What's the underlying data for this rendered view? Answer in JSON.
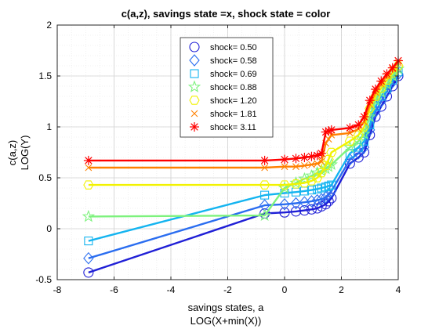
{
  "chart_data": {
    "type": "line",
    "title": "c(a,z), savings state =x, shock state = color",
    "xlabel": [
      "savings states, a",
      "LOG(X+min(X))"
    ],
    "ylabel": [
      "c(a,z)",
      "LOG(Y)"
    ],
    "xlim": [
      -8,
      4
    ],
    "ylim": [
      -0.5,
      2
    ],
    "xticks": [
      -8,
      -6,
      -4,
      -2,
      0,
      2,
      4
    ],
    "yticks": [
      -0.5,
      0,
      0.5,
      1,
      1.5,
      2
    ],
    "grid": true,
    "minor_grid": true,
    "legend_position": "top-center",
    "series": [
      {
        "name": "shock=  0.50",
        "color": "#1f1fd6",
        "marker": "circle",
        "x": [
          -6.9,
          -0.7,
          0.0,
          0.4,
          0.7,
          0.95,
          1.15,
          1.3,
          1.45,
          1.55,
          1.65,
          2.3,
          2.6,
          2.8,
          3.0,
          3.2,
          3.4,
          3.6,
          3.8,
          4.0
        ],
        "y": [
          -0.43,
          0.15,
          0.16,
          0.17,
          0.18,
          0.19,
          0.2,
          0.22,
          0.24,
          0.27,
          0.3,
          0.64,
          0.7,
          0.75,
          0.92,
          1.1,
          1.2,
          1.3,
          1.4,
          1.5
        ]
      },
      {
        "name": "shock=  0.58",
        "color": "#2a6df0",
        "marker": "diamond",
        "x": [
          -6.9,
          -0.7,
          0.0,
          0.4,
          0.7,
          0.95,
          1.15,
          1.3,
          1.45,
          1.55,
          1.65,
          2.3,
          2.6,
          2.8,
          3.0,
          3.2,
          3.4,
          3.6,
          3.8,
          4.0
        ],
        "y": [
          -0.29,
          0.23,
          0.24,
          0.25,
          0.26,
          0.27,
          0.28,
          0.29,
          0.31,
          0.34,
          0.37,
          0.68,
          0.74,
          0.8,
          0.97,
          1.15,
          1.25,
          1.35,
          1.44,
          1.52
        ]
      },
      {
        "name": "shock=  0.69",
        "color": "#14b4f0",
        "marker": "square",
        "x": [
          -6.9,
          -0.7,
          0.0,
          0.4,
          0.7,
          0.95,
          1.15,
          1.3,
          1.45,
          1.55,
          1.65,
          2.3,
          2.6,
          2.8,
          3.0,
          3.2,
          3.4,
          3.6,
          3.8,
          4.0
        ],
        "y": [
          -0.12,
          0.33,
          0.35,
          0.36,
          0.37,
          0.38,
          0.39,
          0.4,
          0.41,
          0.42,
          0.43,
          0.74,
          0.8,
          0.86,
          1.02,
          1.2,
          1.3,
          1.38,
          1.46,
          1.54
        ]
      },
      {
        "name": "shock=  0.88",
        "color": "#7df27d",
        "marker": "star5",
        "x": [
          -6.9,
          -0.7,
          0.0,
          0.4,
          0.7,
          0.95,
          1.15,
          1.3,
          1.45,
          1.55,
          1.65,
          2.3,
          2.6,
          2.8,
          3.0,
          3.2,
          3.4,
          3.6,
          3.8,
          4.0
        ],
        "y": [
          0.12,
          0.13,
          0.4,
          0.45,
          0.49,
          0.52,
          0.55,
          0.57,
          0.59,
          0.61,
          0.63,
          0.8,
          0.86,
          0.93,
          1.1,
          1.26,
          1.34,
          1.42,
          1.5,
          1.57
        ]
      },
      {
        "name": "shock=  1.20",
        "color": "#f2f200",
        "marker": "hexagon",
        "x": [
          -6.9,
          -0.7,
          0.0,
          0.4,
          0.7,
          0.95,
          1.15,
          1.3,
          1.45,
          1.55,
          1.65,
          2.3,
          2.6,
          2.8,
          3.0,
          3.2,
          3.4,
          3.6,
          3.8,
          4.0
        ],
        "y": [
          0.43,
          0.43,
          0.43,
          0.44,
          0.45,
          0.47,
          0.5,
          0.55,
          0.62,
          0.68,
          0.75,
          0.86,
          0.92,
          1.0,
          1.18,
          1.3,
          1.38,
          1.46,
          1.53,
          1.6
        ]
      },
      {
        "name": "shock=  1.81",
        "color": "#ff8000",
        "marker": "x",
        "x": [
          -6.9,
          -0.7,
          0.0,
          0.4,
          0.7,
          0.95,
          1.15,
          1.3,
          1.45,
          1.55,
          1.65,
          2.3,
          2.6,
          2.8,
          3.0,
          3.2,
          3.4,
          3.6,
          3.8,
          4.0
        ],
        "y": [
          0.6,
          0.6,
          0.61,
          0.61,
          0.62,
          0.63,
          0.64,
          0.66,
          0.84,
          0.88,
          0.92,
          0.94,
          0.98,
          1.05,
          1.22,
          1.34,
          1.42,
          1.5,
          1.57,
          1.63
        ]
      },
      {
        "name": "shock=  3.11",
        "color": "#ff0000",
        "marker": "asterisk",
        "x": [
          -6.9,
          -0.7,
          0.0,
          0.4,
          0.7,
          0.95,
          1.15,
          1.3,
          1.45,
          1.55,
          1.65,
          2.3,
          2.6,
          2.8,
          3.0,
          3.2,
          3.4,
          3.6,
          3.8,
          4.0
        ],
        "y": [
          0.67,
          0.67,
          0.68,
          0.69,
          0.7,
          0.71,
          0.72,
          0.74,
          0.95,
          0.96,
          0.97,
          0.99,
          1.02,
          1.1,
          1.26,
          1.37,
          1.45,
          1.52,
          1.58,
          1.65
        ]
      }
    ]
  }
}
